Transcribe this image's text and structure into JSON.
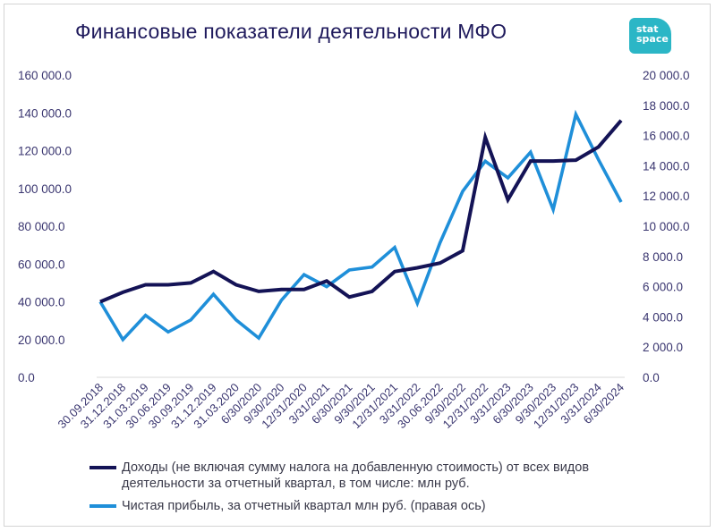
{
  "title": "Финансовые показатели деятельности МФО",
  "logo": {
    "line1": "stat",
    "line2": "space"
  },
  "colors": {
    "series1": "#141356",
    "series2": "#1f8fd9",
    "text": "#3a3670"
  },
  "chart_data": {
    "type": "line",
    "title": "Финансовые показатели деятельности МФО",
    "categories": [
      "30.09.2018",
      "31.12.2018",
      "31.03.2019",
      "30.06.2019",
      "30.09.2019",
      "31.12.2019",
      "31.03.2020",
      "6/30/2020",
      "9/30/2020",
      "12/31/2020",
      "3/31/2021",
      "6/30/2021",
      "9/30/2021",
      "12/31/2021",
      "3/31/2022",
      "30.06.2022",
      "9/30/2022",
      "12/31/2022",
      "3/31/2023",
      "6/30/2023",
      "9/30/2023",
      "12/31/2023",
      "3/31/2024",
      "6/30/2024"
    ],
    "y_left": {
      "ylim": [
        0,
        160000
      ],
      "ticks": [
        "0.0",
        "20 000.0",
        "40 000.0",
        "60 000.0",
        "80 000.0",
        "100 000.0",
        "120 000.0",
        "140 000.0",
        "160 000.0"
      ]
    },
    "y_right": {
      "ylim": [
        0,
        20000
      ],
      "ticks": [
        "0.0",
        "2 000.0",
        "4 000.0",
        "6 000.0",
        "8 000.0",
        "10 000.0",
        "12 000.0",
        "14 000.0",
        "16 000.0",
        "18 000.0",
        "20 000.0"
      ]
    },
    "series": [
      {
        "name": "Доходы (не включая сумму налога на добавленную стоимость) от всех видов деятельности за отчетный квартал, в том числе: млн руб.",
        "axis": "left",
        "values": [
          40000,
          45000,
          49000,
          49000,
          50000,
          56000,
          49000,
          45500,
          46500,
          46500,
          51000,
          42500,
          45500,
          56000,
          58000,
          60500,
          67000,
          127000,
          94000,
          114500,
          114500,
          115000,
          122000,
          136000
        ]
      },
      {
        "name": "Чистая прибыль, за отчетный квартал млн руб. (правая ось)",
        "axis": "right",
        "values": [
          5000,
          2500,
          4100,
          3000,
          3800,
          5500,
          3800,
          2600,
          5100,
          6800,
          6000,
          7100,
          7300,
          8600,
          4900,
          8900,
          12300,
          14300,
          13200,
          14900,
          11100,
          17400,
          14400,
          11600
        ]
      }
    ],
    "legend_position": "bottom",
    "grid": false
  }
}
